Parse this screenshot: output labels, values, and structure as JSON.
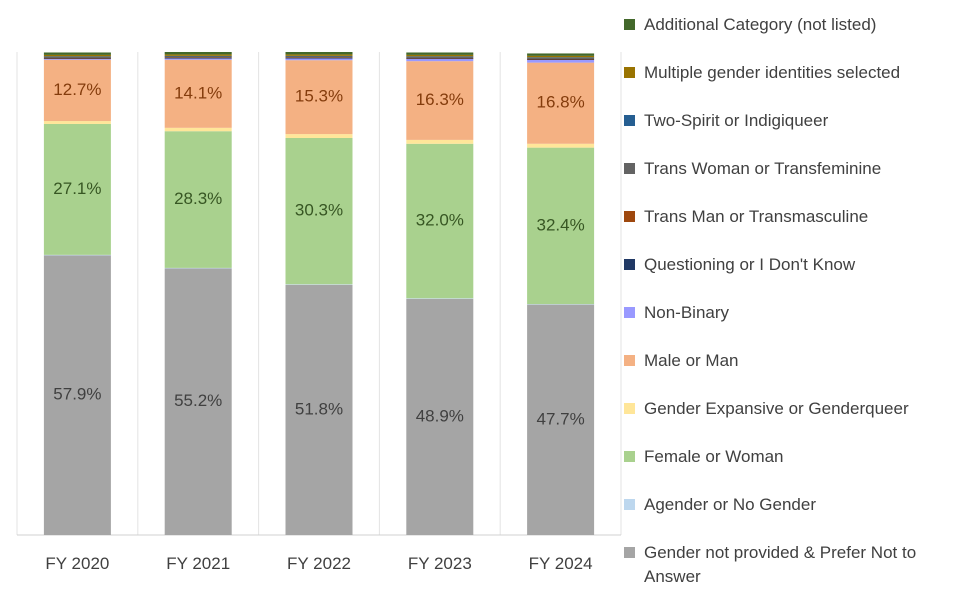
{
  "chart_data": {
    "type": "bar",
    "stacked": true,
    "categories": [
      "FY 2020",
      "FY 2021",
      "FY 2022",
      "FY 2023",
      "FY 2024"
    ],
    "ylim": [
      0,
      100
    ],
    "grid": "vertical separators between categories",
    "legend_position": "right",
    "series": [
      {
        "name": "Gender not provided & Prefer Not to Answer",
        "color": "#a5a5a5",
        "label_color": "#404040",
        "values": [
          57.9,
          55.2,
          51.8,
          48.9,
          47.7
        ],
        "labels": [
          "57.9%",
          "55.2%",
          "51.8%",
          "48.9%",
          "47.7%"
        ]
      },
      {
        "name": "Agender or No Gender",
        "color": "#bdd7ee",
        "values": [
          0.1,
          0.1,
          0.1,
          0.1,
          0.1
        ]
      },
      {
        "name": "Female or Woman",
        "color": "#a9d18e",
        "label_color": "#375623",
        "values": [
          27.1,
          28.3,
          30.3,
          32.0,
          32.4
        ],
        "labels": [
          "27.1%",
          "28.3%",
          "30.3%",
          "32.0%",
          "32.4%"
        ]
      },
      {
        "name": "Gender Expansive or Genderqueer",
        "color": "#ffe699",
        "values": [
          0.6,
          0.7,
          0.8,
          0.8,
          0.8
        ]
      },
      {
        "name": "Male or Man",
        "color": "#f4b183",
        "label_color": "#843c0c",
        "values": [
          12.7,
          14.1,
          15.3,
          16.3,
          16.8
        ],
        "labels": [
          "12.7%",
          "14.1%",
          "15.3%",
          "16.3%",
          "16.8%"
        ]
      },
      {
        "name": "Non-Binary",
        "color": "#9999ff",
        "values": [
          0.2,
          0.3,
          0.4,
          0.5,
          0.6
        ]
      },
      {
        "name": "Questioning or I Don't Know",
        "color": "#203864",
        "values": [
          0.05,
          0.05,
          0.05,
          0.05,
          0.05
        ]
      },
      {
        "name": "Trans Man or Transmasculine",
        "color": "#9e480e",
        "values": [
          0.1,
          0.1,
          0.1,
          0.1,
          0.1
        ]
      },
      {
        "name": "Trans Woman or Transfeminine",
        "color": "#636363",
        "values": [
          0.3,
          0.3,
          0.3,
          0.3,
          0.3
        ]
      },
      {
        "name": "Two-Spirit or Indigiqueer",
        "color": "#255e91",
        "values": [
          0.05,
          0.05,
          0.05,
          0.05,
          0.05
        ]
      },
      {
        "name": "Multiple gender identities selected",
        "color": "#997300",
        "values": [
          0.3,
          0.3,
          0.3,
          0.3,
          0.3
        ]
      },
      {
        "name": "Additional Category (not listed)",
        "color": "#43682b",
        "values": [
          0.5,
          0.5,
          0.5,
          0.5,
          0.5
        ]
      }
    ],
    "legend_order": [
      "Additional Category (not listed)",
      "Multiple gender identities selected",
      "Two-Spirit or Indigiqueer",
      "Trans Woman or Transfeminine",
      "Trans Man or Transmasculine",
      "Questioning or I Don't Know",
      "Non-Binary",
      "Male or Man",
      "Gender Expansive or Genderqueer",
      "Female or Woman",
      "Agender or No Gender",
      "Gender not provided & Prefer Not to Answer"
    ]
  }
}
